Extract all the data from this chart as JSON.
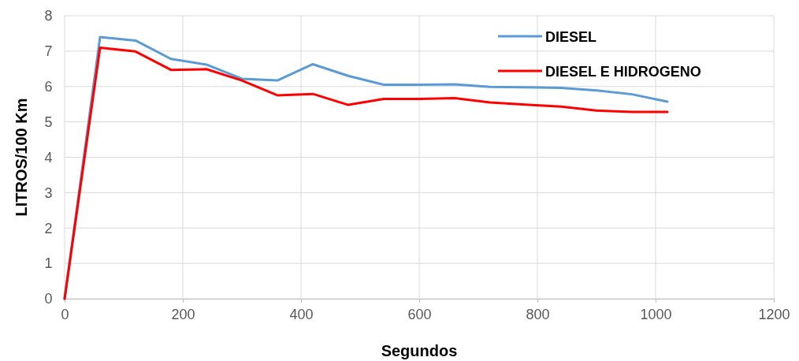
{
  "chart_data": {
    "type": "line",
    "xlabel": "Segundos",
    "ylabel": "LITROS/100 Km",
    "x": [
      0,
      60,
      120,
      180,
      240,
      300,
      360,
      420,
      480,
      540,
      600,
      660,
      720,
      780,
      840,
      900,
      960,
      1020
    ],
    "series": [
      {
        "name": "DIESEL",
        "color": "#5b9bd5",
        "values": [
          0,
          7.4,
          7.3,
          6.78,
          6.62,
          6.22,
          6.17,
          6.63,
          6.3,
          6.05,
          6.05,
          6.06,
          5.99,
          5.98,
          5.96,
          5.89,
          5.78,
          5.57
        ]
      },
      {
        "name": "DIESEL E HIDROGENO",
        "color": "#ff0000",
        "values": [
          0,
          7.1,
          6.99,
          6.47,
          6.49,
          6.17,
          5.75,
          5.79,
          5.48,
          5.65,
          5.65,
          5.67,
          5.55,
          5.49,
          5.43,
          5.32,
          5.28,
          5.28
        ]
      }
    ],
    "xlim": [
      0,
      1200
    ],
    "xticks": [
      0,
      200,
      400,
      600,
      800,
      1000,
      1200
    ],
    "ylim": [
      0,
      8
    ],
    "yticks": [
      0,
      1,
      2,
      3,
      4,
      5,
      6,
      7,
      8
    ],
    "grid": true,
    "legend": "top right",
    "marker": "none",
    "line_style": "solid"
  }
}
